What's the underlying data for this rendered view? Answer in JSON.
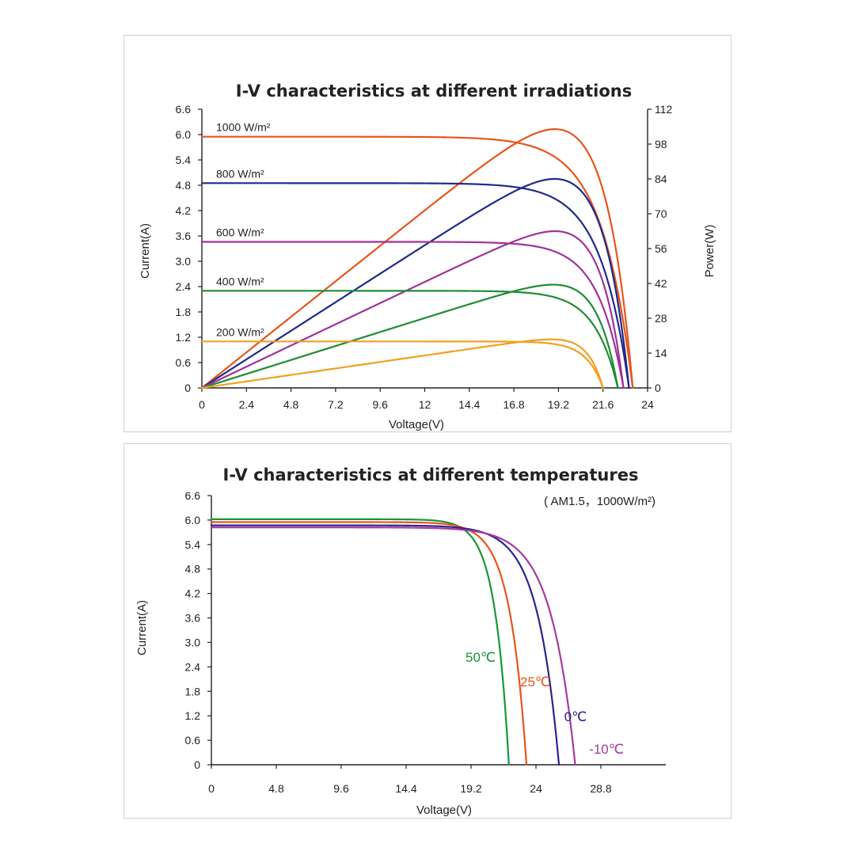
{
  "chart_data": [
    {
      "type": "line",
      "title": "I-V characteristics at different irradiations",
      "xlabel": "Voltage(V)",
      "ylabel": "Current(A)",
      "y2label": "Power(W)",
      "xlim": [
        0,
        24
      ],
      "ylim": [
        0,
        6.6
      ],
      "y2lim": [
        0,
        112
      ],
      "xticks": [
        "0",
        "2.4",
        "4.8",
        "7.2",
        "9.6",
        "12",
        "14.4",
        "16.8",
        "19.2",
        "21.6",
        "24"
      ],
      "yticks": [
        "0",
        "0.6",
        "1.2",
        "1.8",
        "2.4",
        "3.0",
        "3.6",
        "4.2",
        "4.8",
        "5.4",
        "6.0",
        "6.6"
      ],
      "y2ticks": [
        "0",
        "14",
        "28",
        "42",
        "56",
        "70",
        "84",
        "98",
        "112"
      ],
      "grid": false,
      "series": [
        {
          "name": "1000 W/m²",
          "color": "#e8541c",
          "isc": 5.95,
          "voc": 23.2,
          "pmax_v": 19.0,
          "pmax_w": 104
        },
        {
          "name": "800 W/m²",
          "color": "#1f2a8a",
          "isc": 4.85,
          "voc": 23.0,
          "pmax_v": 19.0,
          "pmax_w": 84
        },
        {
          "name": "600 W/m²",
          "color": "#a0329a",
          "isc": 3.46,
          "voc": 22.7,
          "pmax_v": 19.0,
          "pmax_w": 63
        },
        {
          "name": "400 W/m²",
          "color": "#1e8c32",
          "isc": 2.3,
          "voc": 22.4,
          "pmax_v": 18.9,
          "pmax_w": 41.5
        },
        {
          "name": "200 W/m²",
          "color": "#f0a020",
          "isc": 1.1,
          "voc": 21.6,
          "pmax_v": 18.8,
          "pmax_w": 19.5
        }
      ]
    },
    {
      "type": "line",
      "title": "I-V characteristics at different temperatures",
      "note": "( AM1.5，1000W/m²)",
      "xlabel": "Voltage(V)",
      "ylabel": "Current(A)",
      "xlim": [
        0,
        33.6
      ],
      "ylim": [
        0,
        6.6
      ],
      "xticks": [
        "0",
        "4.8",
        "9.6",
        "14.4",
        "19.2",
        "24",
        "28.8"
      ],
      "yticks": [
        "0",
        "0.6",
        "1.2",
        "1.8",
        "2.4",
        "3.0",
        "3.6",
        "4.2",
        "4.8",
        "5.4",
        "6.0",
        "6.6"
      ],
      "grid": false,
      "series": [
        {
          "name": "50℃",
          "color": "#16963a",
          "isc": 6.02,
          "voc": 22.0
        },
        {
          "name": "25℃",
          "color": "#e8541c",
          "isc": 5.95,
          "voc": 23.3
        },
        {
          "name": "0℃",
          "color": "#2a2490",
          "isc": 5.87,
          "voc": 25.7
        },
        {
          "name": "-10℃",
          "color": "#a7399d",
          "isc": 5.82,
          "voc": 26.9
        }
      ]
    }
  ]
}
